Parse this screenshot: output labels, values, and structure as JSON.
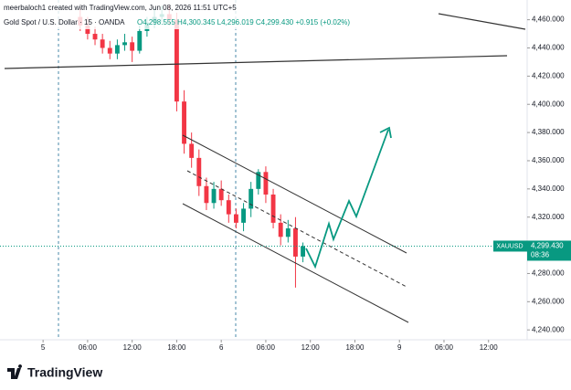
{
  "header": {
    "credit": "meerbaloch1 created with TradingView.com, Jun 08, 2026 11:51 UTC+5",
    "symbol": "Gold Spot / U.S. Dollar · 15 · OANDA",
    "ohlc": "O4,298.555 H4,300.345 L4,296.019 C4,299.430 +0.915 (+0.02%)"
  },
  "chart_data": {
    "type": "candlestick",
    "up_color": "#089981",
    "down_color": "#f23645",
    "x": [
      5,
      6,
      7,
      8,
      9,
      10,
      11,
      12,
      13,
      14,
      15,
      16,
      17,
      18,
      19,
      20,
      21,
      22,
      23,
      24,
      25,
      26,
      27,
      28,
      29,
      30,
      31,
      32,
      33,
      34,
      35
    ],
    "open": [
      4462,
      4456,
      4450,
      4446,
      4440,
      4436,
      4442,
      4444,
      4438,
      4452,
      4458,
      4462,
      4464,
      4460,
      4402,
      4372,
      4362,
      4342,
      4330,
      4340,
      4332,
      4322,
      4316,
      4326,
      4340,
      4352,
      4336,
      4316,
      4306,
      4312,
      4292
    ],
    "high": [
      4468,
      4462,
      4455,
      4450,
      4445,
      4446,
      4450,
      4448,
      4456,
      4462,
      4468,
      4470,
      4470,
      4465,
      4410,
      4380,
      4368,
      4348,
      4345,
      4346,
      4336,
      4326,
      4330,
      4345,
      4354,
      4356,
      4340,
      4322,
      4318,
      4320,
      4302
    ],
    "low": [
      4452,
      4446,
      4442,
      4436,
      4432,
      4432,
      4438,
      4430,
      4436,
      4448,
      4454,
      4458,
      4456,
      4395,
      4365,
      4355,
      4335,
      4325,
      4326,
      4328,
      4316,
      4312,
      4310,
      4320,
      4336,
      4330,
      4312,
      4300,
      4302,
      4270,
      4288
    ],
    "close": [
      4456,
      4450,
      4446,
      4440,
      4436,
      4442,
      4444,
      4438,
      4452,
      4458,
      4462,
      4464,
      4460,
      4402,
      4372,
      4362,
      4342,
      4330,
      4340,
      4332,
      4322,
      4316,
      4326,
      4340,
      4352,
      4336,
      4316,
      4306,
      4312,
      4292,
      4299.43
    ],
    "xlim": [
      -5.8,
      65.2
    ],
    "ylim": [
      4233,
      4474
    ],
    "xticks": [
      {
        "value": 0,
        "label": "5"
      },
      {
        "value": 6,
        "label": "06:00"
      },
      {
        "value": 12,
        "label": "12:00"
      },
      {
        "value": 18,
        "label": "18:00"
      },
      {
        "value": 24,
        "label": "6"
      },
      {
        "value": 30,
        "label": "06:00"
      },
      {
        "value": 36,
        "label": "12:00"
      },
      {
        "value": 42,
        "label": "18:00"
      },
      {
        "value": 48,
        "label": "9"
      },
      {
        "value": 54,
        "label": "06:00"
      },
      {
        "value": 60,
        "label": "12:00"
      }
    ],
    "yticks": [
      {
        "value": 4240,
        "label": "4,240.000"
      },
      {
        "value": 4260,
        "label": "4,260.000"
      },
      {
        "value": 4280,
        "label": "4,280.000"
      },
      {
        "value": 4300,
        "label": "4,300.000"
      },
      {
        "value": 4320,
        "label": "4,320.000"
      },
      {
        "value": 4340,
        "label": "4,340.000"
      },
      {
        "value": 4360,
        "label": "4,360.000"
      },
      {
        "value": 4380,
        "label": "4,380.000"
      },
      {
        "value": 4400,
        "label": "4,400.000"
      },
      {
        "value": 4420,
        "label": "4,420.000"
      },
      {
        "value": 4440,
        "label": "4,440.000"
      },
      {
        "value": 4460,
        "label": "4,460.000"
      }
    ],
    "last_price": {
      "value": 4299.43,
      "label": "4,299.430"
    },
    "ticker": "XAUUSD",
    "countdown": "08:36"
  },
  "logo": "TradingView"
}
